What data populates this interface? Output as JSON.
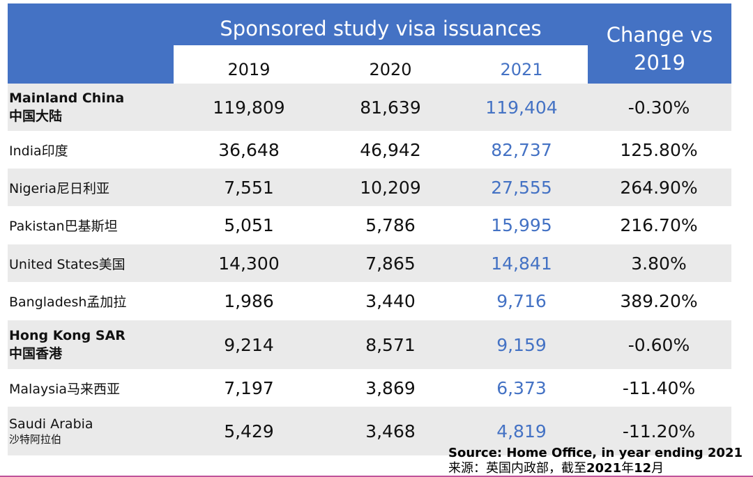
{
  "header": {
    "group_title": "Sponsored study visa issuances",
    "change_title_line1": "Change vs",
    "change_title_line2": "2019"
  },
  "colors": {
    "header_blue": "#4472c4",
    "highlight_2021": "#4472c4",
    "row_shade": "#eaeaea"
  },
  "source": {
    "line1": "Source: Home Office, in year ending 2021",
    "line2_prefix": "来源：英国内政部，截至",
    "line2_year": "2021",
    "line2_mid": "年",
    "line2_month": "12",
    "line2_suffix": "月"
  },
  "chart_data": {
    "type": "table",
    "title": "Sponsored study visa issuances",
    "columns": [
      "2019",
      "2020",
      "2021",
      "Change vs 2019"
    ],
    "rows": [
      {
        "country": "Mainland China",
        "country_zh": "中国大陆",
        "v2019": "119,809",
        "v2020": "81,639",
        "v2021": "119,404",
        "change": "-0.30%"
      },
      {
        "country": "India",
        "country_zh": "印度",
        "v2019": "36,648",
        "v2020": "46,942",
        "v2021": "82,737",
        "change": "125.80%"
      },
      {
        "country": "Nigeria",
        "country_zh": "尼日利亚",
        "v2019": "7,551",
        "v2020": "10,209",
        "v2021": "27,555",
        "change": "264.90%"
      },
      {
        "country": "Pakistan",
        "country_zh": "巴基斯坦",
        "v2019": "5,051",
        "v2020": "5,786",
        "v2021": "15,995",
        "change": "216.70%"
      },
      {
        "country": "United States",
        "country_zh": "美国",
        "v2019": "14,300",
        "v2020": "7,865",
        "v2021": "14,841",
        "change": "3.80%"
      },
      {
        "country": "Bangladesh",
        "country_zh": "孟加拉",
        "v2019": "1,986",
        "v2020": "3,440",
        "v2021": "9,716",
        "change": "389.20%"
      },
      {
        "country": "Hong Kong SAR",
        "country_zh": "中国香港",
        "v2019": "9,214",
        "v2020": "8,571",
        "v2021": "9,159",
        "change": "-0.60%"
      },
      {
        "country": "Malaysia",
        "country_zh": "马来西亚",
        "v2019": "7,197",
        "v2020": "3,869",
        "v2021": "6,373",
        "change": "-11.40%"
      },
      {
        "country": "Saudi Arabia",
        "country_zh": "沙特阿拉伯",
        "v2019": "5,429",
        "v2020": "3,468",
        "v2021": "4,819",
        "change": "-11.20%"
      }
    ]
  }
}
